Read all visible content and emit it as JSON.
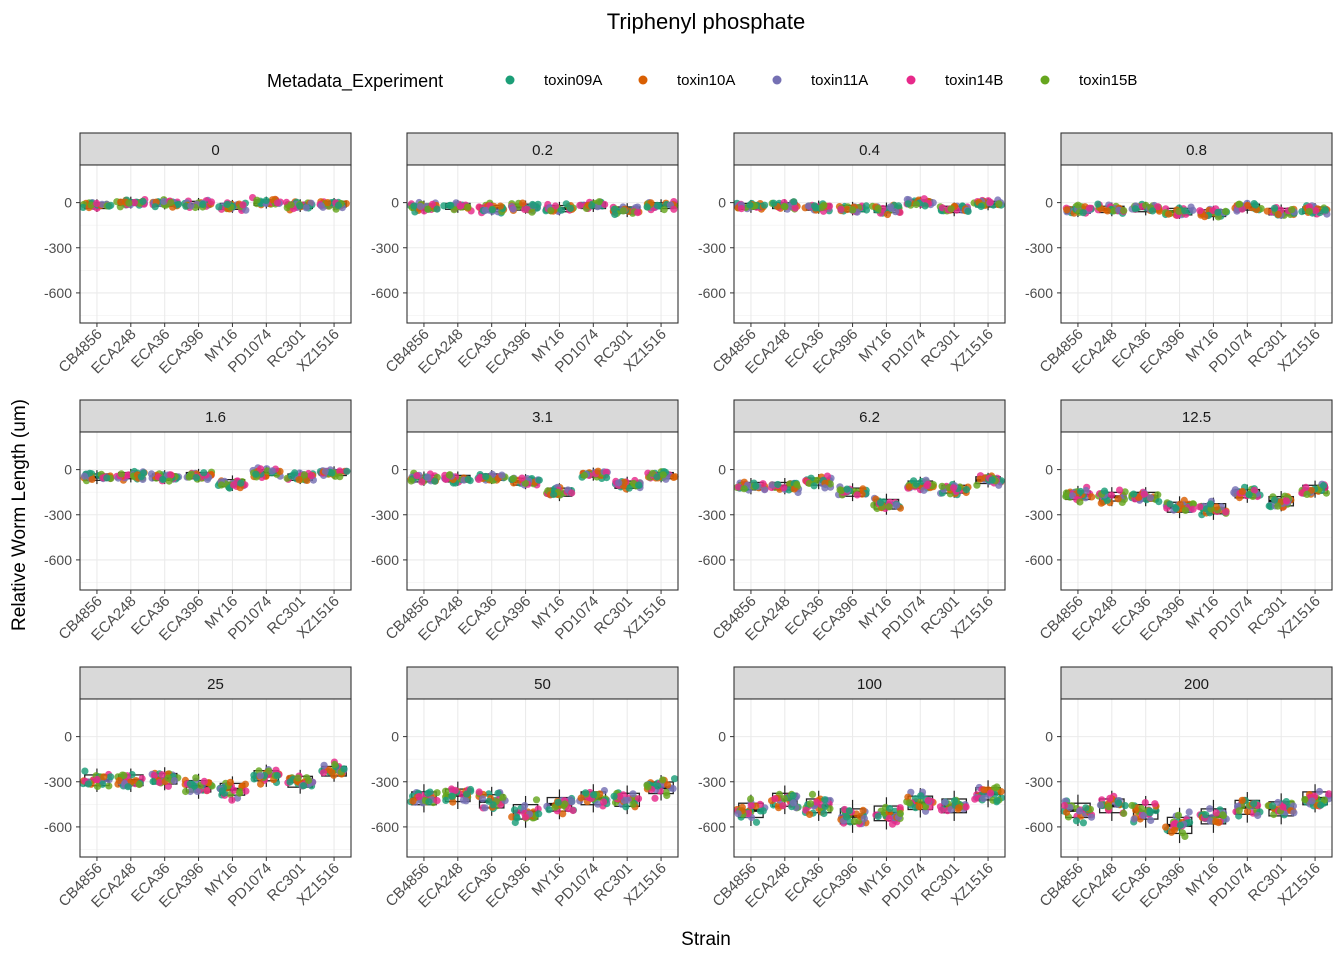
{
  "chart_data": {
    "type": "scatter",
    "subtype": "faceted jitter + boxplot",
    "title": "Triphenyl phosphate",
    "xlabel": "Strain",
    "ylabel": "Relative Worm Length (um)",
    "legend": {
      "title": "Metadata_Experiment",
      "position": "top",
      "entries": [
        {
          "name": "toxin09A",
          "color": "#1b9e77"
        },
        {
          "name": "toxin10A",
          "color": "#d95f02"
        },
        {
          "name": "toxin11A",
          "color": "#7570b3"
        },
        {
          "name": "toxin14B",
          "color": "#e7298a"
        },
        {
          "name": "toxin15B",
          "color": "#66a61e"
        }
      ]
    },
    "categories": [
      "CB4856",
      "ECA248",
      "ECA36",
      "ECA396",
      "MY16",
      "PD1074",
      "RC301",
      "XZ1516"
    ],
    "ylim": [
      -800,
      250
    ],
    "yticks": [
      0,
      -300,
      -600
    ],
    "facets": [
      {
        "label": "0",
        "medians": [
          -20,
          0,
          -5,
          -10,
          -25,
          0,
          -20,
          -10
        ]
      },
      {
        "label": "0.2",
        "medians": [
          -30,
          -25,
          -40,
          -30,
          -40,
          -20,
          -50,
          -20
        ]
      },
      {
        "label": "0.4",
        "medians": [
          -25,
          -20,
          -30,
          -40,
          -45,
          0,
          -45,
          -10
        ]
      },
      {
        "label": "0.8",
        "medians": [
          -50,
          -45,
          -40,
          -60,
          -70,
          -30,
          -60,
          -50
        ]
      },
      {
        "label": "1.6",
        "medians": [
          -50,
          -40,
          -50,
          -40,
          -90,
          -20,
          -50,
          -20
        ]
      },
      {
        "label": "3.1",
        "medians": [
          -60,
          -60,
          -50,
          -80,
          -150,
          -30,
          -100,
          -40
        ]
      },
      {
        "label": "6.2",
        "medians": [
          -110,
          -110,
          -80,
          -150,
          -230,
          -100,
          -130,
          -70
        ]
      },
      {
        "label": "12.5",
        "medians": [
          -170,
          -180,
          -180,
          -250,
          -260,
          -160,
          -210,
          -130
        ]
      },
      {
        "label": "25",
        "medians": [
          -290,
          -290,
          -280,
          -330,
          -350,
          -260,
          -300,
          -230
        ]
      },
      {
        "label": "50",
        "medians": [
          -410,
          -390,
          -430,
          -500,
          -450,
          -410,
          -420,
          -340
        ]
      },
      {
        "label": "100",
        "medians": [
          -490,
          -420,
          -460,
          -530,
          -510,
          -440,
          -460,
          -380
        ]
      },
      {
        "label": "200",
        "medians": [
          -490,
          -460,
          -500,
          -590,
          -530,
          -470,
          -480,
          -410
        ]
      }
    ]
  }
}
